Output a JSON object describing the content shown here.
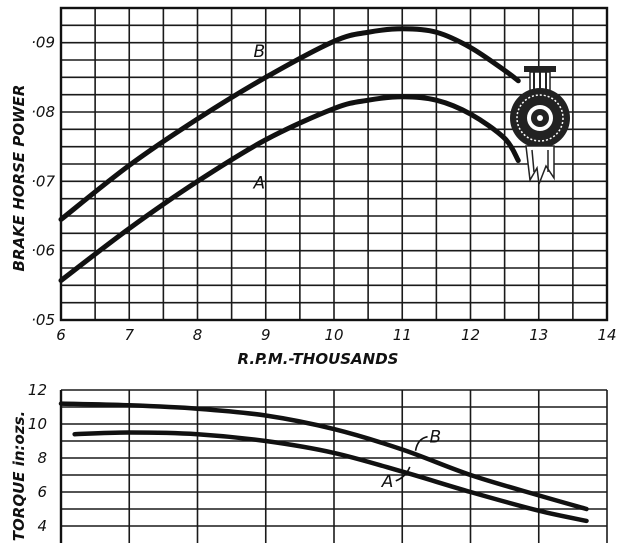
{
  "chart_data": [
    {
      "type": "line",
      "xlabel": "R.P.M.-THOUSANDS",
      "ylabel": "BRAKE HORSE POWER",
      "xlim": [
        6,
        14
      ],
      "ylim": [
        0.05,
        0.095
      ],
      "x_ticks": [
        "6",
        "7",
        "8",
        "9",
        "10",
        "11",
        "12",
        "13",
        "14"
      ],
      "y_ticks": [
        {
          "value": 0.05,
          "label": "·05"
        },
        {
          "value": 0.06,
          "label": "·06"
        },
        {
          "value": 0.07,
          "label": "·07"
        },
        {
          "value": 0.08,
          "label": "·08"
        },
        {
          "value": 0.09,
          "label": "·09"
        }
      ],
      "grid": true,
      "series": [
        {
          "name": "B",
          "x": [
            6,
            7,
            8,
            9,
            10,
            10.5,
            11,
            11.5,
            12,
            12.5,
            12.7
          ],
          "y": [
            0.0645,
            0.0723,
            0.079,
            0.085,
            0.0902,
            0.0915,
            0.092,
            0.0915,
            0.0893,
            0.086,
            0.0845
          ]
        },
        {
          "name": "A",
          "x": [
            6,
            7,
            8,
            9,
            10,
            10.5,
            11,
            11.5,
            12,
            12.5,
            12.7
          ],
          "y": [
            0.0557,
            0.0632,
            0.07,
            0.076,
            0.0805,
            0.0817,
            0.0822,
            0.0817,
            0.0797,
            0.0762,
            0.073
          ]
        }
      ],
      "series_labels": [
        {
          "text": "B",
          "x": 9.7,
          "y": 0.0862
        },
        {
          "text": "A",
          "x": 9.7,
          "y": 0.0713
        }
      ]
    },
    {
      "type": "line",
      "ylabel": "TORQUE in:ozs.",
      "xlim": [
        6,
        14
      ],
      "ylim": [
        3,
        12
      ],
      "y_ticks": [
        {
          "value": 4,
          "label": "4"
        },
        {
          "value": 6,
          "label": "6"
        },
        {
          "value": 8,
          "label": "8"
        },
        {
          "value": 10,
          "label": "10"
        },
        {
          "value": 12,
          "label": "12"
        }
      ],
      "grid": true,
      "series": [
        {
          "name": "B",
          "x": [
            6,
            7,
            8,
            9,
            10,
            11,
            12,
            13,
            13.7
          ],
          "y": [
            11.2,
            11.1,
            10.9,
            10.5,
            9.7,
            8.5,
            7.0,
            5.8,
            5.0
          ]
        },
        {
          "name": "A",
          "x": [
            6.2,
            7,
            8,
            9,
            10,
            11,
            12,
            13,
            13.7
          ],
          "y": [
            9.4,
            9.5,
            9.4,
            9.0,
            8.3,
            7.2,
            6.0,
            4.9,
            4.3
          ]
        }
      ],
      "series_labels": [
        {
          "text": "B",
          "x": 11.4,
          "y": 8.9
        },
        {
          "text": "A",
          "x": 10.7,
          "y": 6.3
        }
      ]
    }
  ],
  "badge": {
    "icon": "engine-seal-icon"
  }
}
